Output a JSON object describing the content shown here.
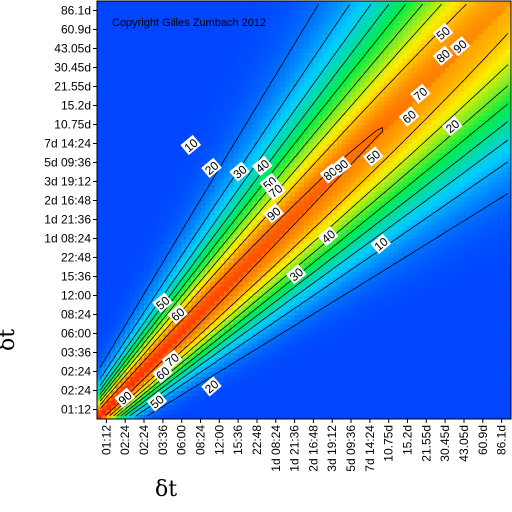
{
  "chart_data": {
    "type": "heatmap",
    "subtype": "contour",
    "copyright": "Copyright Gilles Zumbach 2012",
    "xlabel": "δt",
    "ylabel": "δt",
    "ticks": [
      "01:12",
      "02:24",
      "02:24",
      "03:36",
      "06:00",
      "08:24",
      "12:00",
      "15:36",
      "22:48",
      "1d 08:24",
      "1d 21:36",
      "2d 16:48",
      "3d 19:12",
      "5d 09:36",
      "7d 14:24",
      "10.75d",
      "15.2d",
      "21.55d",
      "30.45d",
      "43.05d",
      "60.9d",
      "86.1d"
    ],
    "colorscale": [
      "#0033ff",
      "#00ccff",
      "#00ee44",
      "#ffee00",
      "#ff2200"
    ],
    "contour_levels": [
      10,
      20,
      30,
      40,
      50,
      60,
      70,
      80,
      90
    ],
    "contour_labels": [
      {
        "text": "10",
        "i": 4.5,
        "j": 13.9
      },
      {
        "text": "20",
        "i": 5.6,
        "j": 12.7
      },
      {
        "text": "30",
        "i": 7.1,
        "j": 12.5
      },
      {
        "text": "40",
        "i": 8.3,
        "j": 12.8
      },
      {
        "text": "50",
        "i": 8.7,
        "j": 11.9
      },
      {
        "text": "70",
        "i": 9.0,
        "j": 11.5
      },
      {
        "text": "90",
        "i": 8.9,
        "j": 10.3
      },
      {
        "text": "80",
        "i": 11.9,
        "j": 12.4
      },
      {
        "text": "90",
        "i": 12.5,
        "j": 12.8
      },
      {
        "text": "40",
        "i": 11.8,
        "j": 9.1
      },
      {
        "text": "10",
        "i": 14.6,
        "j": 8.7
      },
      {
        "text": "30",
        "i": 10.1,
        "j": 7.1
      },
      {
        "text": "50",
        "i": 14.2,
        "j": 13.3
      },
      {
        "text": "60",
        "i": 16.1,
        "j": 15.4
      },
      {
        "text": "70",
        "i": 16.7,
        "j": 16.6
      },
      {
        "text": "80",
        "i": 17.9,
        "j": 18.6
      },
      {
        "text": "90",
        "i": 18.8,
        "j": 19.1
      },
      {
        "text": "50",
        "i": 17.9,
        "j": 19.8
      },
      {
        "text": "20",
        "i": 18.4,
        "j": 14.9
      },
      {
        "text": "50",
        "i": 3.0,
        "j": 5.6
      },
      {
        "text": "60",
        "i": 3.8,
        "j": 5.0
      },
      {
        "text": "70",
        "i": 3.5,
        "j": 2.6
      },
      {
        "text": "60",
        "i": 3.0,
        "j": 1.9
      },
      {
        "text": "20",
        "i": 5.6,
        "j": 1.2
      },
      {
        "text": "90",
        "i": 1.0,
        "j": 0.6
      },
      {
        "text": "50",
        "i": 2.7,
        "j": 0.4
      }
    ]
  }
}
